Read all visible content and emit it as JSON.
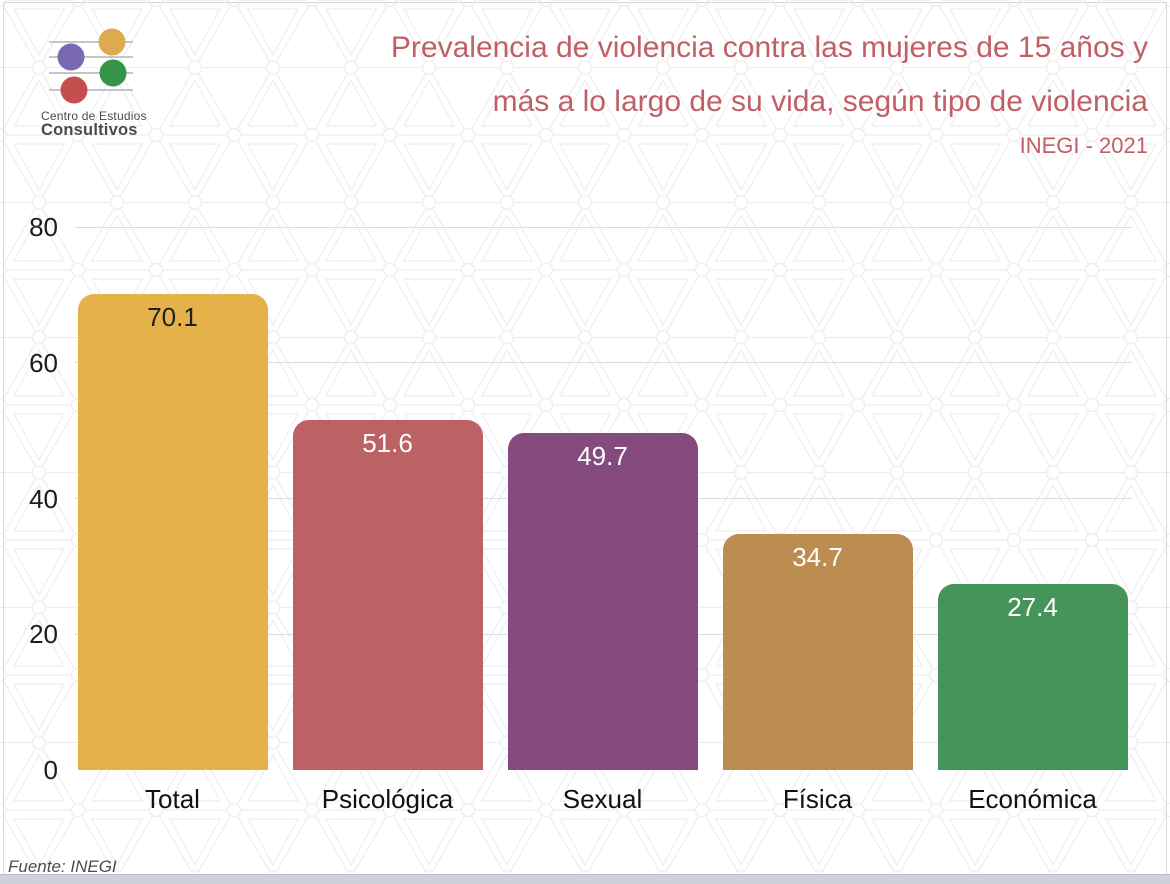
{
  "page": {
    "background_color": "#ffffff",
    "bottom_bar_color": "#cdd2da"
  },
  "logo": {
    "org_line1": "Centro de Estudios",
    "org_line2": "Consultivos",
    "dot_colors": {
      "yellow": "#dcab4e",
      "purple": "#7b68b4",
      "green": "#359449",
      "red": "#c54f4e"
    },
    "line_color": "#b3b3b3",
    "text_color": "#4a4a4a"
  },
  "header": {
    "title_line1": "Prevalencia de violencia contra las mujeres de 15 años y",
    "title_line2": "más a lo largo de su vida, según tipo de violencia",
    "subtitle": "INEGI - 2021",
    "title_color": "#c05f66"
  },
  "chart_data": {
    "type": "bar",
    "title": "Prevalencia de violencia contra las mujeres de 15 años y más a lo largo de su vida, según tipo de violencia",
    "subtitle": "INEGI - 2021",
    "categories": [
      "Total",
      "Psicológica",
      "Sexual",
      "Física",
      "Económica"
    ],
    "values": [
      70.1,
      51.6,
      49.7,
      34.7,
      27.4
    ],
    "bar_colors": [
      "#e5b24a",
      "#bc6164",
      "#854a7e",
      "#bd8c51",
      "#45955a"
    ],
    "value_label_colors": [
      "#1f1f1f",
      "#ffffff",
      "#ffffff",
      "#ffffff",
      "#ffffff"
    ],
    "xlabel": "",
    "ylabel": "",
    "ylim": [
      0,
      80
    ],
    "yticks": [
      0,
      20,
      40,
      60,
      80
    ],
    "grid": "horizontal gridlines at y ticks",
    "legend_position": "none",
    "source": "Fuente: INEGI"
  },
  "footer": {
    "source": "Fuente: INEGI"
  }
}
